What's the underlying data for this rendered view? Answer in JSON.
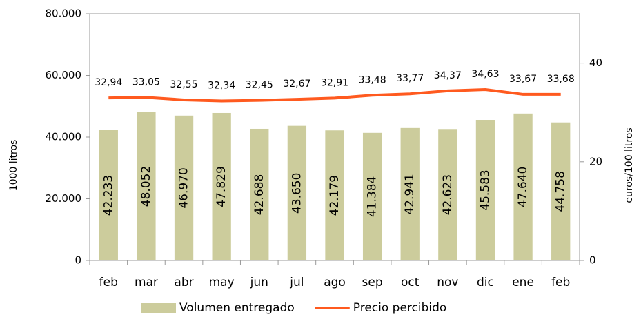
{
  "chart_data": {
    "type": "combo",
    "categories": [
      "feb",
      "mar",
      "abr",
      "may",
      "jun",
      "jul",
      "ago",
      "sep",
      "oct",
      "nov",
      "dic",
      "ene",
      "feb"
    ],
    "series": [
      {
        "name": "Volumen entregado",
        "type": "bar",
        "color": "#cccc9c",
        "values": [
          42233,
          48052,
          46970,
          47829,
          42688,
          43650,
          42179,
          41384,
          42941,
          42623,
          45583,
          47640,
          44758
        ],
        "value_labels": [
          "42.233",
          "48.052",
          "46.970",
          "47.829",
          "42.688",
          "43.650",
          "42.179",
          "41.384",
          "42.941",
          "42.623",
          "45.583",
          "47.640",
          "44.758"
        ]
      },
      {
        "name": "Precio percibido",
        "type": "line",
        "axis": "y2",
        "color": "#ff5a1f",
        "values": [
          32.94,
          33.05,
          32.55,
          32.34,
          32.45,
          32.67,
          32.91,
          33.48,
          33.77,
          34.37,
          34.63,
          33.67,
          33.68
        ],
        "value_labels": [
          "32,94",
          "33,05",
          "32,55",
          "32,34",
          "32,45",
          "32,67",
          "32,91",
          "33,48",
          "33,77",
          "34,37",
          "34,63",
          "33,67",
          "33,68"
        ]
      }
    ],
    "ylabel": "1000 litros",
    "y2label": "euros/100 litros",
    "ylim": [
      0,
      80000
    ],
    "yticks": [
      0,
      {
        "value": 20000,
        "label": "20.000"
      },
      {
        "value": 40000,
        "label": "40.000"
      },
      {
        "value": 60000,
        "label": "60.000"
      },
      {
        "value": 80000,
        "label": "80.000"
      }
    ],
    "y2lim": [
      0,
      50
    ],
    "y2ticks": [
      0,
      20,
      40
    ],
    "legend": "bottom"
  }
}
